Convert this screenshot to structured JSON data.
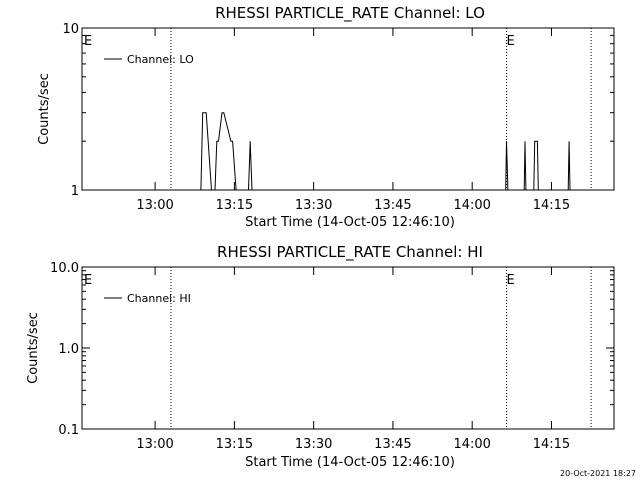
{
  "colors": {
    "background": "#ffffff",
    "foreground": "#000000"
  },
  "footer": {
    "timestamp": "20-Oct-2021 18:27"
  },
  "chart_data": [
    {
      "type": "line",
      "title": "RHESSI PARTICLE_RATE Channel: LO",
      "xlabel": "Start Time (14-Oct-05 12:46:10)",
      "ylabel": "Counts/sec",
      "xlim": [
        "12:46:10",
        "14:26:50"
      ],
      "ylim": [
        1,
        10
      ],
      "yscale": "log",
      "xticks": [
        "13:00",
        "13:15",
        "13:30",
        "13:45",
        "14:00",
        "14:15"
      ],
      "yticks": [
        "1",
        "10"
      ],
      "legend": {
        "placement": "top-left",
        "entries": [
          "Channel: LO"
        ]
      },
      "markers": [
        {
          "time": "12:46:10",
          "label": "E",
          "line": false
        },
        {
          "time": "13:03:00",
          "label": "",
          "line": true
        },
        {
          "time": "14:06:30",
          "label": "E",
          "line": true
        },
        {
          "time": "14:22:30",
          "label": "",
          "line": true
        }
      ],
      "series": [
        {
          "name": "Channel: LO",
          "x": [
            "13:08:40",
            "13:09:00",
            "13:09:40",
            "13:10:40",
            "13:11:20",
            "13:11:40",
            "13:12:00",
            "13:12:40",
            "13:13:00",
            "13:14:20",
            "13:14:40",
            "13:15:20",
            "13:15:40",
            "13:16:40",
            "13:17:40",
            "13:18:00",
            "13:18:20",
            "14:06:20",
            "14:06:30",
            "14:06:45",
            "14:09:50",
            "14:10:00",
            "14:10:10",
            "14:11:40",
            "14:11:50",
            "14:12:20",
            "14:12:30",
            "14:18:10",
            "14:18:20",
            "14:18:30"
          ],
          "values": [
            1,
            3,
            3,
            1,
            1,
            2,
            2,
            3,
            3,
            2,
            2,
            1,
            1,
            1,
            1,
            2,
            1,
            1,
            2,
            1,
            1,
            2,
            1,
            1,
            2,
            2,
            1,
            1,
            2,
            1
          ]
        }
      ]
    },
    {
      "type": "line",
      "title": "RHESSI PARTICLE_RATE Channel: HI",
      "xlabel": "Start Time (14-Oct-05 12:46:10)",
      "ylabel": "Counts/sec",
      "xlim": [
        "12:46:10",
        "14:26:50"
      ],
      "ylim": [
        0.1,
        10
      ],
      "yscale": "log",
      "xticks": [
        "13:00",
        "13:15",
        "13:30",
        "13:45",
        "14:00",
        "14:15"
      ],
      "yticks": [
        "0.1",
        "1.0",
        "10.0"
      ],
      "legend": {
        "placement": "top-left",
        "entries": [
          "Channel: HI"
        ]
      },
      "markers": [
        {
          "time": "12:46:10",
          "label": "E",
          "line": false
        },
        {
          "time": "13:03:00",
          "label": "",
          "line": true
        },
        {
          "time": "14:06:30",
          "label": "E",
          "line": true
        },
        {
          "time": "14:22:30",
          "label": "",
          "line": true
        }
      ],
      "series": [
        {
          "name": "Channel: HI",
          "x": [],
          "values": []
        }
      ]
    }
  ]
}
